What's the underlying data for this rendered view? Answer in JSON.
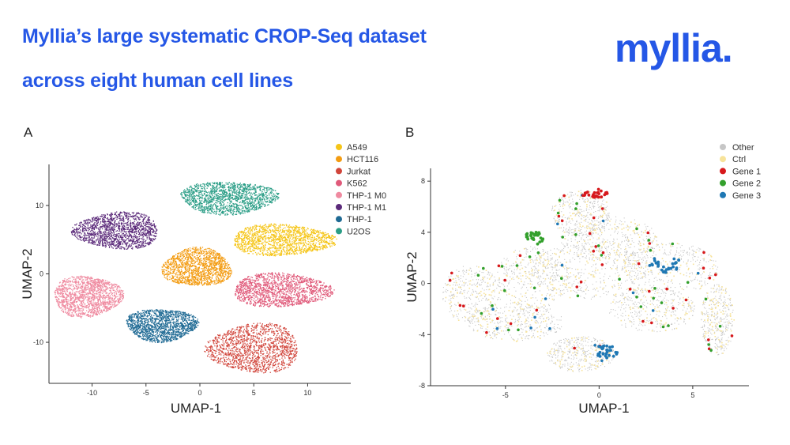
{
  "header": {
    "title_line1": "Myllia’s large systematic CROP-Seq dataset",
    "title_line2": "across eight human cell lines",
    "logo_text": "myllia."
  },
  "chart_data": [
    {
      "panel": "A",
      "type": "scatter",
      "subtype": "umap",
      "xlabel": "UMAP-1",
      "ylabel": "UMAP-2",
      "xlim": [
        -14,
        14
      ],
      "ylim": [
        -16,
        16
      ],
      "xticks": [
        -10,
        -5,
        0,
        5,
        10
      ],
      "yticks": [
        10,
        0,
        -10
      ],
      "legend_position": "top-right",
      "series": [
        {
          "name": "A549",
          "color": "#f5c518",
          "center": [
            7.6,
            5.0
          ],
          "extent": [
            4.8,
            2.3
          ]
        },
        {
          "name": "HCT116",
          "color": "#f39c12",
          "center": [
            -0.3,
            1.0
          ],
          "extent": [
            3.2,
            2.8
          ]
        },
        {
          "name": "Jurkat",
          "color": "#d1453b",
          "center": [
            5.0,
            -10.8
          ],
          "extent": [
            4.3,
            3.6
          ]
        },
        {
          "name": "K562",
          "color": "#e05a7a",
          "center": [
            7.5,
            -2.3
          ],
          "extent": [
            4.6,
            2.5
          ]
        },
        {
          "name": "THP-1 M0",
          "color": "#ef8aa0",
          "center": [
            -10.5,
            -3.2
          ],
          "extent": [
            3.2,
            3.0
          ]
        },
        {
          "name": "THP-1 M1",
          "color": "#5b2a7a",
          "center": [
            -7.7,
            6.4
          ],
          "extent": [
            4.0,
            2.7
          ]
        },
        {
          "name": "THP-1",
          "color": "#1f6a94",
          "center": [
            -3.6,
            -7.4
          ],
          "extent": [
            3.3,
            2.4
          ]
        },
        {
          "name": "U2OS",
          "color": "#2a9d86",
          "center": [
            2.6,
            11.2
          ],
          "extent": [
            4.5,
            2.4
          ]
        }
      ]
    },
    {
      "panel": "B",
      "type": "scatter",
      "subtype": "umap",
      "xlabel": "UMAP-1",
      "ylabel": "UMAP-2",
      "xlim": [
        -9,
        8
      ],
      "ylim": [
        -8,
        9
      ],
      "xticks": [
        -5,
        0,
        5
      ],
      "yticks": [
        8,
        4,
        0,
        -4,
        -8
      ],
      "legend_position": "top-right",
      "series": [
        {
          "name": "Other",
          "color": "#c6c6c6"
        },
        {
          "name": "Ctrl",
          "color": "#f7e39a"
        },
        {
          "name": "Gene 1",
          "color": "#d7191c"
        },
        {
          "name": "Gene 2",
          "color": "#33a02c"
        },
        {
          "name": "Gene 3",
          "color": "#1f78b4"
        }
      ],
      "clusters": [
        {
          "name": "Gene 1",
          "center": [
            -0.2,
            7.0
          ],
          "extent": [
            0.7,
            0.4
          ]
        },
        {
          "name": "Gene 2",
          "center": [
            -3.5,
            3.5
          ],
          "extent": [
            0.5,
            0.6
          ]
        },
        {
          "name": "Gene 3",
          "center": [
            3.5,
            1.5
          ],
          "extent": [
            0.9,
            0.7
          ]
        },
        {
          "name": "Gene 3",
          "center": [
            0.4,
            -5.3
          ],
          "extent": [
            0.6,
            0.6
          ]
        }
      ]
    }
  ]
}
